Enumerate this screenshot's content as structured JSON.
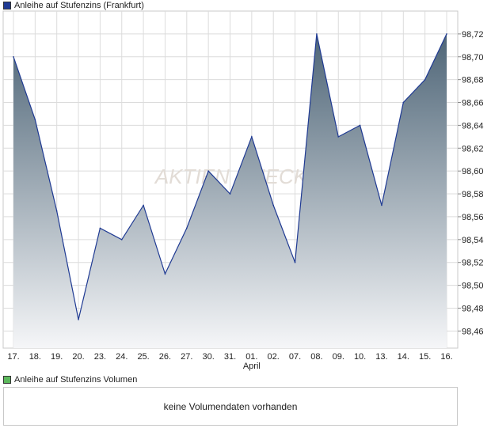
{
  "legend": {
    "price_label": "Anleihe auf Stufenzins (Frankfurt)",
    "price_color": "#1f3a93",
    "volume_label": "Anleihe auf Stufenzins Volumen",
    "volume_color": "#5cb85c"
  },
  "volume": {
    "message": "keine Volumendaten vorhanden"
  },
  "chart_data": {
    "type": "area",
    "categories": [
      "17.",
      "18.",
      "19.",
      "20.",
      "23.",
      "24.",
      "25.",
      "26.",
      "27.",
      "30.",
      "31.",
      "01.",
      "02.",
      "07.",
      "08.",
      "09.",
      "10.",
      "13.",
      "14.",
      "15.",
      "16."
    ],
    "month_labels": [
      {
        "index": 11,
        "label": "April"
      }
    ],
    "series": [
      {
        "values": [
          98.7,
          98.645,
          98.565,
          98.47,
          98.55,
          98.54,
          98.57,
          98.51,
          98.55,
          98.6,
          98.58,
          98.63,
          98.57,
          98.52,
          98.72,
          98.63,
          98.64,
          98.57,
          98.66,
          98.68,
          98.72
        ],
        "line_color": "#1f3a93",
        "fill_top": "#4e6577",
        "fill_bottom": "#f5f6f8"
      }
    ],
    "y_ticks": [
      "98,46",
      "98,48",
      "98,50",
      "98,52",
      "98,54",
      "98,56",
      "98,58",
      "98,60",
      "98,62",
      "98,64",
      "98,66",
      "98,68",
      "98,70",
      "98,72"
    ],
    "ylim": [
      98.445,
      98.74
    ],
    "grid": true,
    "watermark": "AKTIEN CHECK"
  }
}
